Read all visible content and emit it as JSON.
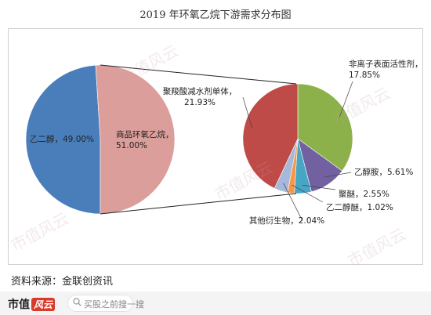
{
  "title": "2019 年环氧乙烷下游需求分布图",
  "source": "资料来源：金联创资讯",
  "brand": {
    "name": "市值",
    "badge": "风云"
  },
  "search_placeholder": "买股之前搜一搜",
  "watermark": "市值风云",
  "chart_data": [
    {
      "type": "pie",
      "labels": [
        "乙二醇，49.00%",
        "商品环氧乙烷，51.00%"
      ],
      "values": [
        49.0,
        51.0
      ],
      "colors": [
        "#4a7ebb",
        "#db9e9b"
      ]
    },
    {
      "type": "pie",
      "labels": [
        "非离子表面活性剂，17.85%",
        "乙醇胺，5.61%",
        "聚醚，2.55%",
        "乙二醇醚，1.02%",
        "其他衍生物，2.04%",
        "聚羧酸减水剂单体，21.93%"
      ],
      "values": [
        17.85,
        5.61,
        2.55,
        1.02,
        2.04,
        21.93
      ],
      "colors": [
        "#8db14a",
        "#7161a0",
        "#47a6c4",
        "#f79646",
        "#a7b9db",
        "#be4b48"
      ]
    }
  ]
}
